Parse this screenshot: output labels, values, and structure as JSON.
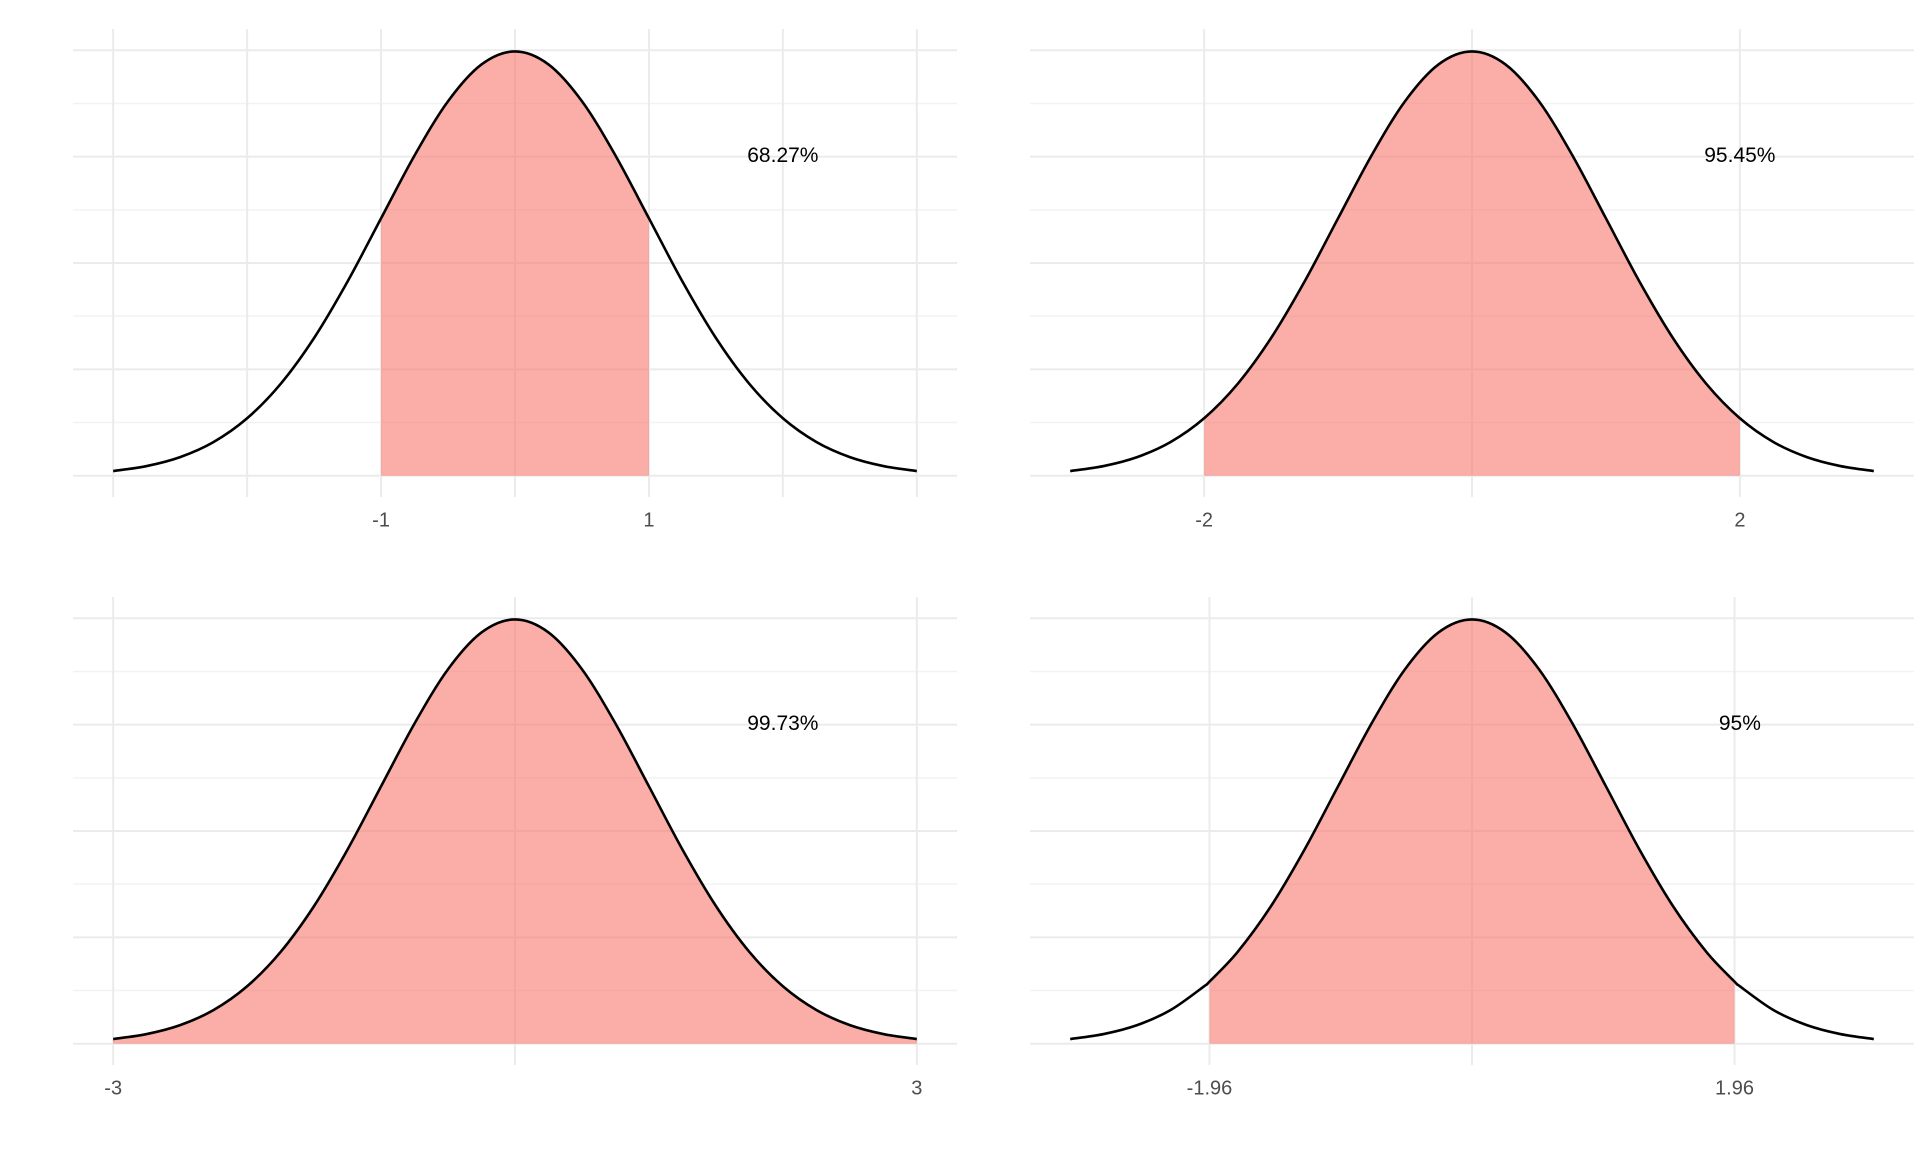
{
  "chart_data": [
    {
      "type": "area",
      "annotation": "68.27%",
      "color": "#F8766D",
      "interval": [
        -1,
        1
      ],
      "x": [
        -3,
        -2.75,
        -2.5,
        -2.25,
        -2,
        -1.75,
        -1.5,
        -1.25,
        -1,
        -0.75,
        -0.5,
        -0.25,
        0,
        0.25,
        0.5,
        0.75,
        1,
        1.25,
        1.5,
        1.75,
        2,
        2.25,
        2.5,
        2.75,
        3
      ],
      "values": [
        0.0044,
        0.0091,
        0.0175,
        0.0317,
        0.054,
        0.0863,
        0.1295,
        0.1826,
        0.242,
        0.3011,
        0.3521,
        0.3867,
        0.3989,
        0.3867,
        0.3521,
        0.3011,
        0.242,
        0.1826,
        0.1295,
        0.0863,
        0.054,
        0.0317,
        0.0175,
        0.0091,
        0.0044
      ],
      "xlim": [
        -3.3,
        3.3
      ],
      "ylim": [
        -0.02,
        0.42
      ],
      "xticks": [
        -1,
        1
      ],
      "xgrid": [
        -3,
        -2,
        -1,
        0,
        1,
        2,
        3
      ],
      "yticks": [
        0,
        0.1,
        0.2,
        0.3,
        0.4
      ],
      "yminor": [
        0.05,
        0.15,
        0.25,
        0.35
      ]
    },
    {
      "type": "area",
      "annotation": "95.45%",
      "color": "#F8766D",
      "interval": [
        -2,
        2
      ],
      "x": [
        -3,
        -2.75,
        -2.5,
        -2.25,
        -2,
        -1.75,
        -1.5,
        -1.25,
        -1,
        -0.75,
        -0.5,
        -0.25,
        0,
        0.25,
        0.5,
        0.75,
        1,
        1.25,
        1.5,
        1.75,
        2,
        2.25,
        2.5,
        2.75,
        3
      ],
      "values": [
        0.0044,
        0.0091,
        0.0175,
        0.0317,
        0.054,
        0.0863,
        0.1295,
        0.1826,
        0.242,
        0.3011,
        0.3521,
        0.3867,
        0.3989,
        0.3867,
        0.3521,
        0.3011,
        0.242,
        0.1826,
        0.1295,
        0.0863,
        0.054,
        0.0317,
        0.0175,
        0.0091,
        0.0044
      ],
      "xlim": [
        -3.3,
        3.3
      ],
      "ylim": [
        -0.02,
        0.42
      ],
      "xticks": [
        -2,
        2
      ],
      "xgrid": [
        -2,
        0,
        2
      ],
      "yticks": [
        0,
        0.1,
        0.2,
        0.3,
        0.4
      ],
      "yminor": [
        0.05,
        0.15,
        0.25,
        0.35
      ]
    },
    {
      "type": "area",
      "annotation": "99.73%",
      "color": "#F8766D",
      "interval": [
        -3,
        3
      ],
      "x": [
        -3,
        -2.75,
        -2.5,
        -2.25,
        -2,
        -1.75,
        -1.5,
        -1.25,
        -1,
        -0.75,
        -0.5,
        -0.25,
        0,
        0.25,
        0.5,
        0.75,
        1,
        1.25,
        1.5,
        1.75,
        2,
        2.25,
        2.5,
        2.75,
        3
      ],
      "values": [
        0.0044,
        0.0091,
        0.0175,
        0.0317,
        0.054,
        0.0863,
        0.1295,
        0.1826,
        0.242,
        0.3011,
        0.3521,
        0.3867,
        0.3989,
        0.3867,
        0.3521,
        0.3011,
        0.242,
        0.1826,
        0.1295,
        0.0863,
        0.054,
        0.0317,
        0.0175,
        0.0091,
        0.0044
      ],
      "xlim": [
        -3.3,
        3.3
      ],
      "ylim": [
        -0.02,
        0.42
      ],
      "xticks": [
        -3,
        3
      ],
      "xgrid": [
        -3,
        0,
        3
      ],
      "yticks": [
        0,
        0.1,
        0.2,
        0.3,
        0.4
      ],
      "yminor": [
        0.05,
        0.15,
        0.25,
        0.35
      ]
    },
    {
      "type": "area",
      "annotation": "95%",
      "color": "#F8766D",
      "interval": [
        -1.96,
        1.96
      ],
      "x": [
        -3,
        -2.75,
        -2.5,
        -2.25,
        -2,
        -1.96,
        -1.75,
        -1.5,
        -1.25,
        -1,
        -0.75,
        -0.5,
        -0.25,
        0,
        0.25,
        0.5,
        0.75,
        1,
        1.25,
        1.5,
        1.75,
        1.96,
        2,
        2.25,
        2.5,
        2.75,
        3
      ],
      "values": [
        0.0044,
        0.0091,
        0.0175,
        0.0317,
        0.054,
        0.0584,
        0.0863,
        0.1295,
        0.1826,
        0.242,
        0.3011,
        0.3521,
        0.3867,
        0.3989,
        0.3867,
        0.3521,
        0.3011,
        0.242,
        0.1826,
        0.1295,
        0.0863,
        0.0584,
        0.054,
        0.0317,
        0.0175,
        0.0091,
        0.0044
      ],
      "xlim": [
        -3.3,
        3.3
      ],
      "ylim": [
        -0.02,
        0.42
      ],
      "xticks": [
        -1.96,
        1.96
      ],
      "xgrid": [
        -1.96,
        0,
        1.96
      ],
      "yticks": [
        0,
        0.1,
        0.2,
        0.3,
        0.4
      ],
      "yminor": [
        0.05,
        0.15,
        0.25,
        0.35
      ]
    }
  ]
}
